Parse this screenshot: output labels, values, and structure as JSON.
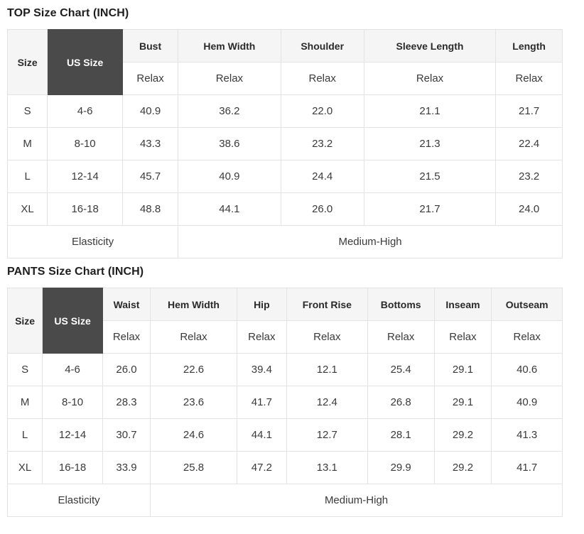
{
  "styles": {
    "header_bg": "#f5f5f5",
    "us_size_bg": "#4a4a4a",
    "us_size_text": "#ffffff",
    "border": "#e3e3e3",
    "title_color": "#1e1e1e",
    "text_color": "#3a3a3a"
  },
  "tables": [
    {
      "title": "TOP Size Chart (INCH)",
      "size_header": "Size",
      "us_size_header": "US Size",
      "measure_columns": [
        "Bust",
        "Hem Width",
        "Shoulder",
        "Sleeve Length",
        "Length"
      ],
      "fit_label": "Relax",
      "col_widths_pct": [
        7.2,
        13.55,
        10.0,
        18.5,
        15.0,
        23.75,
        12.0
      ],
      "rows": [
        {
          "size": "S",
          "us_size": "4-6",
          "values": [
            "40.9",
            "36.2",
            "22.0",
            "21.1",
            "21.7"
          ]
        },
        {
          "size": "M",
          "us_size": "8-10",
          "values": [
            "43.3",
            "38.6",
            "23.2",
            "21.3",
            "22.4"
          ]
        },
        {
          "size": "L",
          "us_size": "12-14",
          "values": [
            "45.7",
            "40.9",
            "24.4",
            "21.5",
            "23.2"
          ]
        },
        {
          "size": "XL",
          "us_size": "16-18",
          "values": [
            "48.8",
            "44.1",
            "26.0",
            "21.7",
            "24.0"
          ]
        }
      ],
      "footer": {
        "label": "Elasticity",
        "value": "Medium-High"
      }
    },
    {
      "title": "PANTS Size Chart (INCH)",
      "size_header": "Size",
      "us_size_header": "US Size",
      "measure_columns": [
        "Waist",
        "Hem Width",
        "Hip",
        "Front Rise",
        "Bottoms",
        "Inseam",
        "Outseam"
      ],
      "fit_label": "Relax",
      "col_widths_pct": [
        6.3,
        10.85,
        8.6,
        15.6,
        8.95,
        14.6,
        12.0,
        10.35,
        12.75
      ],
      "rows": [
        {
          "size": "S",
          "us_size": "4-6",
          "values": [
            "26.0",
            "22.6",
            "39.4",
            "12.1",
            "25.4",
            "29.1",
            "40.6"
          ]
        },
        {
          "size": "M",
          "us_size": "8-10",
          "values": [
            "28.3",
            "23.6",
            "41.7",
            "12.4",
            "26.8",
            "29.1",
            "40.9"
          ]
        },
        {
          "size": "L",
          "us_size": "12-14",
          "values": [
            "30.7",
            "24.6",
            "44.1",
            "12.7",
            "28.1",
            "29.2",
            "41.3"
          ]
        },
        {
          "size": "XL",
          "us_size": "16-18",
          "values": [
            "33.9",
            "25.8",
            "47.2",
            "13.1",
            "29.9",
            "29.2",
            "41.7"
          ]
        }
      ],
      "footer": {
        "label": "Elasticity",
        "value": "Medium-High"
      }
    }
  ],
  "chart_data": [
    {
      "type": "table",
      "title": "TOP Size Chart (INCH)",
      "unit": "INCH",
      "fit": "Relax",
      "columns": [
        "Size",
        "US Size",
        "Bust",
        "Hem Width",
        "Shoulder",
        "Sleeve Length",
        "Length"
      ],
      "rows": [
        [
          "S",
          "4-6",
          40.9,
          36.2,
          22.0,
          21.1,
          21.7
        ],
        [
          "M",
          "8-10",
          43.3,
          38.6,
          23.2,
          21.3,
          22.4
        ],
        [
          "L",
          "12-14",
          45.7,
          40.9,
          24.4,
          21.5,
          23.2
        ],
        [
          "XL",
          "16-18",
          48.8,
          44.1,
          26.0,
          21.7,
          24.0
        ]
      ],
      "footer": [
        "Elasticity",
        "Medium-High"
      ]
    },
    {
      "type": "table",
      "title": "PANTS Size Chart (INCH)",
      "unit": "INCH",
      "fit": "Relax",
      "columns": [
        "Size",
        "US Size",
        "Waist",
        "Hem Width",
        "Hip",
        "Front Rise",
        "Bottoms",
        "Inseam",
        "Outseam"
      ],
      "rows": [
        [
          "S",
          "4-6",
          26.0,
          22.6,
          39.4,
          12.1,
          25.4,
          29.1,
          40.6
        ],
        [
          "M",
          "8-10",
          28.3,
          23.6,
          41.7,
          12.4,
          26.8,
          29.1,
          40.9
        ],
        [
          "L",
          "12-14",
          30.7,
          24.6,
          44.1,
          12.7,
          28.1,
          29.2,
          41.3
        ],
        [
          "XL",
          "16-18",
          33.9,
          25.8,
          47.2,
          13.1,
          29.9,
          29.2,
          41.7
        ]
      ],
      "footer": [
        "Elasticity",
        "Medium-High"
      ]
    }
  ]
}
